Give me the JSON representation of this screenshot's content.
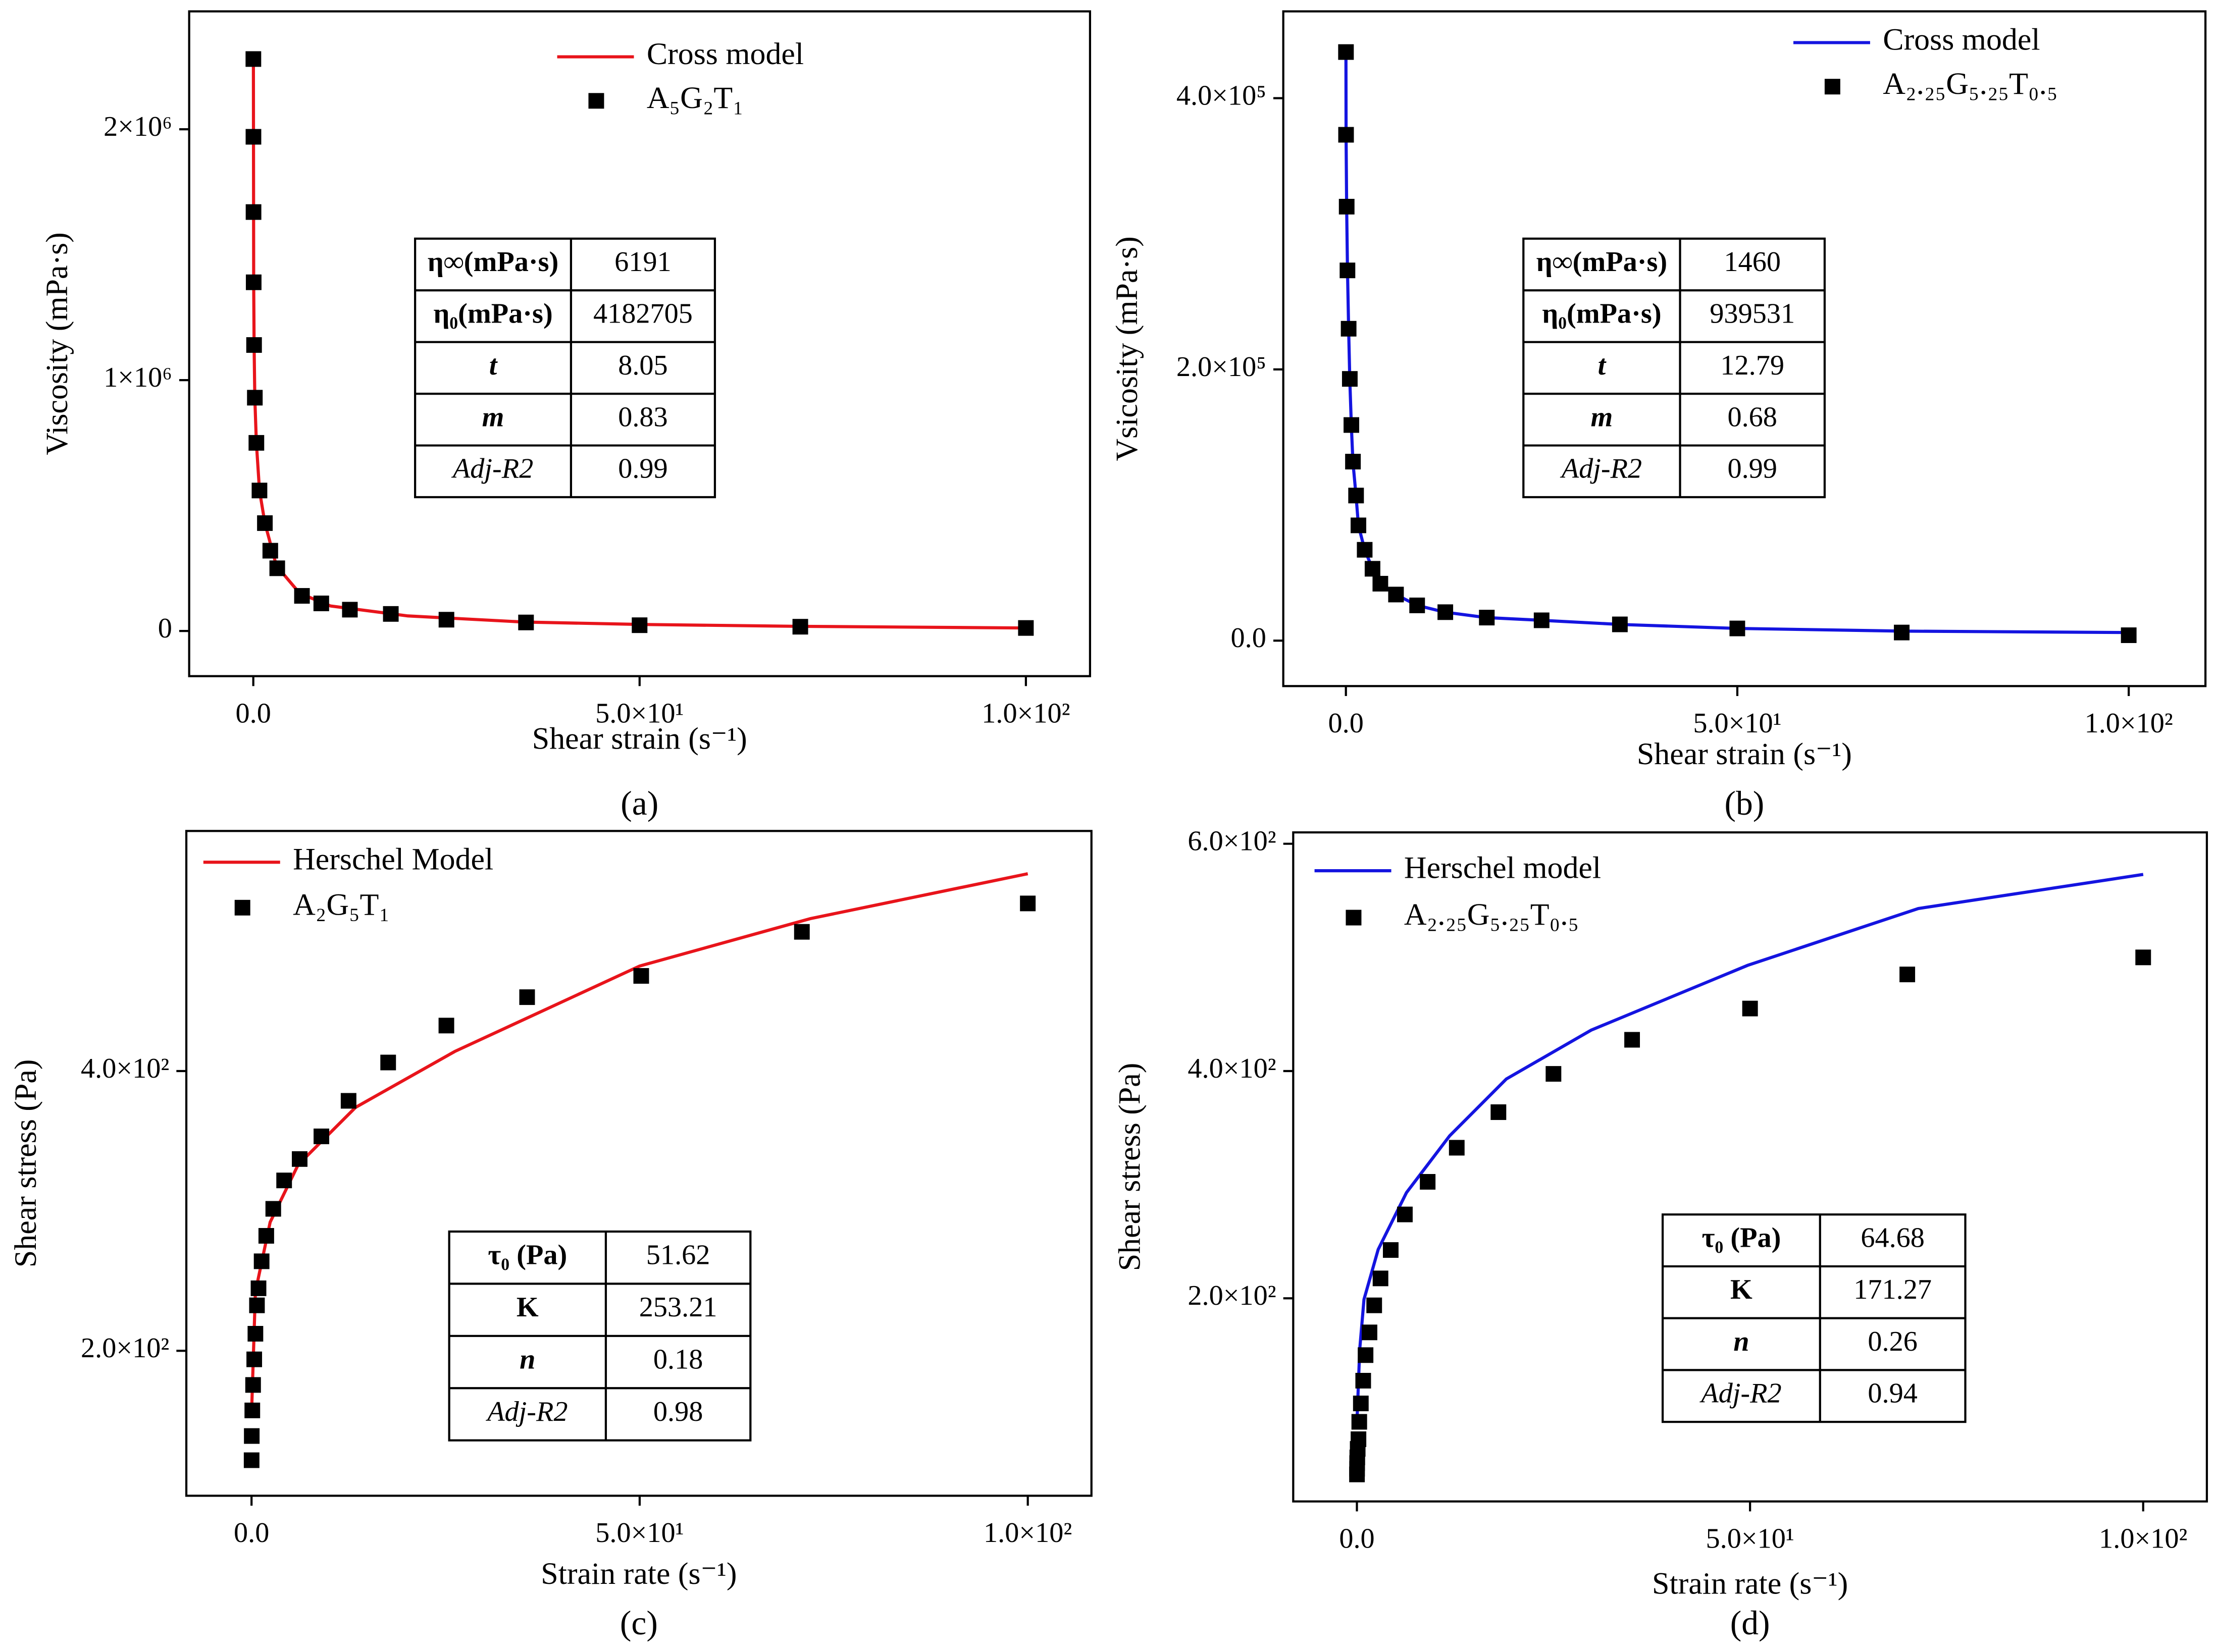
{
  "chart_data": [
    {
      "type": "line",
      "caption": "(a)",
      "xlabel": "Shear strain (s⁻¹)",
      "ylabel": "Viscosity (mPa·s)",
      "xlim": [
        -8.3,
        108.3
      ],
      "ylim": [
        -180000,
        2470000
      ],
      "xticks": [
        {
          "value": 0,
          "label": "0.0"
        },
        {
          "value": 50,
          "label": "5.0×10¹"
        },
        {
          "value": 100,
          "label": "1.0×10²"
        }
      ],
      "yticks": [
        0,
        {
          "value": 1000000,
          "label": "1×10⁶"
        },
        {
          "value": 2000000,
          "label": "2×10⁶"
        }
      ],
      "series": [
        {
          "name": "Cross model",
          "type": "line",
          "color": "#e8141b",
          "x": [
            0.01,
            0.05,
            0.1,
            0.2,
            0.4,
            0.8,
            1.5,
            3,
            6,
            10,
            20,
            35,
            50,
            70,
            100
          ],
          "values": [
            2280000,
            1390000,
            1140000,
            930000,
            750000,
            560000,
            430000,
            260000,
            150000,
            100000,
            60000,
            36000,
            26000,
            19000,
            12000
          ]
        },
        {
          "name": "A₅G₂T₁",
          "type": "scatter",
          "color": "#000000",
          "x": [
            0.01,
            0.02,
            0.03,
            0.05,
            0.1,
            0.2,
            0.4,
            0.8,
            1.5,
            2.2,
            3.1,
            6.3,
            8.8,
            12.5,
            17.8,
            25,
            35.3,
            50,
            70.8,
            100
          ],
          "values": [
            2280000,
            1970000,
            1670000,
            1390000,
            1140000,
            930000,
            750000,
            560000,
            430000,
            320000,
            250000,
            140000,
            110000,
            85000,
            68000,
            45000,
            34000,
            23000,
            17000,
            12000
          ]
        }
      ],
      "table": [
        [
          "η∞(mPa·s)",
          "6191"
        ],
        [
          "η₀(mPa·s)",
          "4182705"
        ],
        [
          "t",
          "8.05"
        ],
        [
          "m",
          "0.83"
        ],
        [
          "Adj-R2",
          "0.99"
        ]
      ]
    },
    {
      "type": "line",
      "caption": "(b)",
      "xlabel": "Shear strain (s⁻¹)",
      "ylabel": "Vsicosity (mPa·s)",
      "xlim": [
        -8.0,
        109.8
      ],
      "ylim": [
        -33500,
        464000
      ],
      "xticks": [
        {
          "value": 0,
          "label": "0.0"
        },
        {
          "value": 50,
          "label": "5.0×10¹"
        },
        {
          "value": 100,
          "label": "1.0×10²"
        }
      ],
      "yticks": [
        {
          "value": 0,
          "label": "0.0"
        },
        {
          "value": 200000,
          "label": "2.0×10⁵"
        },
        {
          "value": 400000,
          "label": "4.0×10⁵"
        }
      ],
      "series": [
        {
          "name": "Cross model",
          "type": "line",
          "color": "#1414e0",
          "x": [
            0.01,
            0.02,
            0.1,
            0.2,
            0.35,
            0.5,
            0.7,
            0.9,
            1.3,
            1.6,
            2.4,
            3.4,
            4.4,
            6.4,
            9.1,
            12.7,
            18,
            25,
            35,
            50,
            71,
            100
          ],
          "values": [
            434000,
            373000,
            320000,
            273000,
            230000,
            193000,
            159000,
            132000,
            107000,
            85000,
            67000,
            53000,
            42000,
            34000,
            26000,
            21000,
            17000,
            15000,
            12000,
            9000,
            7000,
            6000
          ]
        },
        {
          "name": "A₂.₂₅G₅.₂₅T₀.₅",
          "type": "scatter",
          "color": "#000000",
          "x": [
            0.01,
            0.02,
            0.1,
            0.2,
            0.35,
            0.5,
            0.7,
            0.9,
            1.3,
            1.6,
            2.4,
            3.4,
            4.4,
            6.4,
            9.1,
            12.7,
            18,
            25,
            35,
            50,
            71,
            100
          ],
          "values": [
            434000,
            373000,
            320000,
            273000,
            230000,
            193000,
            159000,
            132000,
            107000,
            85000,
            67000,
            53000,
            42000,
            34000,
            26000,
            21000,
            17000,
            15000,
            12000,
            9000,
            6000,
            4000
          ]
        }
      ],
      "table": [
        [
          "η∞(mPa·s)",
          "1460"
        ],
        [
          "η₀(mPa·s)",
          "939531"
        ],
        [
          "t",
          "12.79"
        ],
        [
          "m",
          "0.68"
        ],
        [
          "Adj-R2",
          "0.99"
        ]
      ]
    },
    {
      "type": "line",
      "caption": "(c)",
      "xlabel": "Strain rate (s⁻¹)",
      "ylabel": "Shear stress (Pa)",
      "xlim": [
        -8.4,
        108.2
      ],
      "ylim": [
        96.4,
        571.6
      ],
      "xticks": [
        {
          "value": 0,
          "label": "0.0"
        },
        {
          "value": 50,
          "label": "5.0×10¹"
        },
        {
          "value": 100,
          "label": "1.0×10²"
        }
      ],
      "yticks": [
        {
          "value": 200,
          "label": "2.0×10²"
        },
        {
          "value": 400,
          "label": "4.0×10²"
        }
      ],
      "series": [
        {
          "name": "Herschel Model",
          "type": "line",
          "color": "#e8141b",
          "x": [
            0.01,
            0.5,
            2.4,
            6,
            13.4,
            26.2,
            50,
            72,
            100
          ],
          "values": [
            155,
            242,
            292,
            333,
            374,
            414,
            475,
            509,
            541
          ]
        },
        {
          "name": "A₂G₅T₁",
          "type": "scatter",
          "color": "#000000",
          "x": [
            0.01,
            0.03,
            0.1,
            0.2,
            0.35,
            0.5,
            0.7,
            0.9,
            1.3,
            1.9,
            2.8,
            4.2,
            6.2,
            9.0,
            12.5,
            17.6,
            25.1,
            35.5,
            50.2,
            70.9,
            100
          ],
          "values": [
            121.8,
            139.1,
            157.4,
            175.6,
            193.9,
            212.2,
            232.5,
            244.7,
            264.0,
            282.2,
            301.5,
            321.8,
            337.1,
            353.3,
            378.7,
            406.1,
            432.5,
            452.8,
            468.0,
            499.5,
            519.8
          ]
        }
      ],
      "table": [
        [
          "τ₀ (Pa)",
          "51.62"
        ],
        [
          "K",
          "253.21"
        ],
        [
          "n",
          "0.18"
        ],
        [
          "Adj-R2",
          "0.98"
        ]
      ]
    },
    {
      "type": "line",
      "caption": "(d)",
      "xlabel": "Strain rate (s⁻¹)",
      "ylabel": "Shear stress (Pa)",
      "xlim": [
        -8.1,
        108.1
      ],
      "ylim": [
        21.25,
        610
      ],
      "xticks": [
        {
          "value": 0,
          "label": "0.0"
        },
        {
          "value": 50,
          "label": "5.0×10¹"
        },
        {
          "value": 100,
          "label": "1.0×10²"
        }
      ],
      "yticks": [
        {
          "value": 200,
          "label": "2.0×10²"
        },
        {
          "value": 400,
          "label": "4.0×10²"
        },
        {
          "value": 600,
          "label": "6.0×10²"
        }
      ],
      "series": [
        {
          "name": "Herschel model",
          "type": "line",
          "color": "#1414e0",
          "x": [
            0.02,
            0.36,
            0.9,
            2.7,
            6.3,
            11.8,
            19,
            29.8,
            49.7,
            71.4,
            100
          ],
          "values": [
            92.5,
            155,
            199,
            243,
            293,
            343,
            393,
            436,
            493,
            543,
            573
          ]
        },
        {
          "name": "A₂.₂₅G₅.₂₅T₀.₅",
          "type": "scatter",
          "color": "#000000",
          "x": [
            0.01,
            0.02,
            0.03,
            0.05,
            0.1,
            0.2,
            0.3,
            0.5,
            0.8,
            1.1,
            1.6,
            2.2,
            3,
            4.3,
            6.1,
            9,
            12.7,
            18,
            25,
            35,
            50,
            70,
            100
          ],
          "values": [
            45,
            50,
            55,
            60,
            67.5,
            76,
            91.3,
            107.5,
            127.5,
            150,
            170,
            193.8,
            217.5,
            242.5,
            273.8,
            302.5,
            332.5,
            363.8,
            397.5,
            427.5,
            455,
            485,
            500
          ]
        }
      ],
      "table": [
        [
          "τ₀ (Pa)",
          "64.68"
        ],
        [
          "K",
          "171.27"
        ],
        [
          "n",
          "0.26"
        ],
        [
          "Adj-R2",
          "0.94"
        ]
      ]
    }
  ]
}
